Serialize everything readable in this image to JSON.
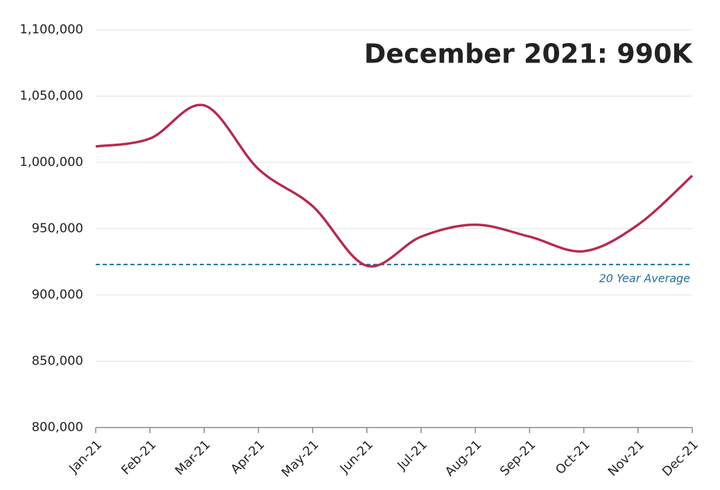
{
  "chart_data": {
    "type": "line",
    "annotation": "December 2021: 990K",
    "categories": [
      "Jan-21",
      "Feb-21",
      "Mar-21",
      "Apr-21",
      "May-21",
      "Jun-21",
      "Jul-21",
      "Aug-21",
      "Sep-21",
      "Oct-21",
      "Nov-21",
      "Dec-21"
    ],
    "values": [
      1012000,
      1018000,
      1043000,
      995000,
      967000,
      922000,
      944000,
      953000,
      944000,
      933000,
      953000,
      990000
    ],
    "color": "#b72a4d",
    "reference": {
      "value": 923000,
      "label": "20 Year Average",
      "color": "#1f6e9c"
    },
    "ylim": [
      800000,
      1100000
    ],
    "yticks": [
      {
        "value": 800000,
        "label": "800,000"
      },
      {
        "value": 850000,
        "label": "850,000"
      },
      {
        "value": 900000,
        "label": "900,000"
      },
      {
        "value": 950000,
        "label": "950,000"
      },
      {
        "value": 1000000,
        "label": "1,000,000"
      },
      {
        "value": 1050000,
        "label": "1,050,000"
      },
      {
        "value": 1100000,
        "label": "1,100,000"
      }
    ],
    "grid": true
  }
}
